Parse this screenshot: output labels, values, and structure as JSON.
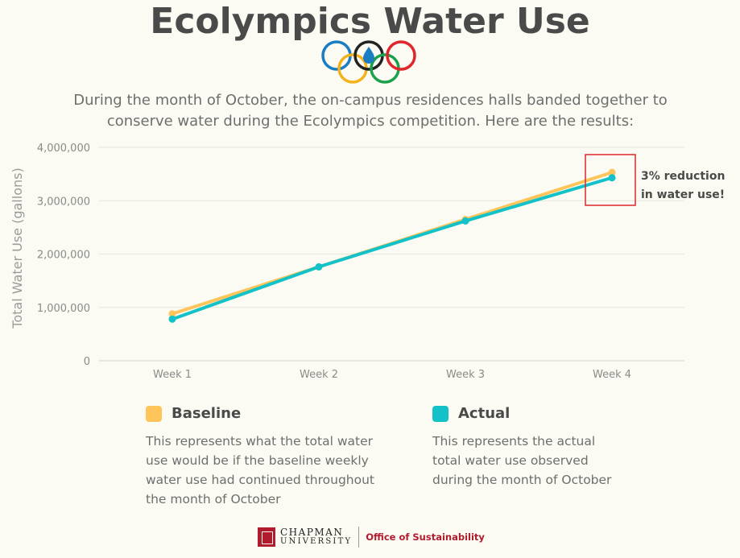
{
  "header": {
    "title": "Ecolympics Water Use",
    "intro_line1": "During the month of October, the on-campus residences halls banded together to",
    "intro_line2": "conserve water during the Ecolympics competition. Here are the results:"
  },
  "colors": {
    "baseline": "#ffc55a",
    "actual": "#13c2c8",
    "highlight": "#e0262b",
    "ring_blue": "#1a7dc2",
    "ring_yellow": "#f3b21b",
    "ring_black": "#222222",
    "ring_green": "#1aa14a",
    "ring_red": "#e0262b"
  },
  "chart_data": {
    "type": "line",
    "categories": [
      "Week 1",
      "Week 2",
      "Week 3",
      "Week 4"
    ],
    "series": [
      {
        "name": "Baseline",
        "values": [
          880000,
          1760000,
          2650000,
          3530000
        ]
      },
      {
        "name": "Actual",
        "values": [
          780000,
          1760000,
          2620000,
          3430000
        ]
      }
    ],
    "ylabel": "Total Water Use (gallons)",
    "ylim": [
      0,
      4000000
    ],
    "yticks": [
      "0",
      "1,000,000",
      "2,000,000",
      "3,000,000",
      "4,000,000"
    ],
    "grid": true,
    "annotation": {
      "line1": "3% reduction",
      "line2": "in water use!"
    }
  },
  "legend": {
    "baseline": {
      "label": "Baseline",
      "desc_lines": [
        "This represents what the total water",
        "use would be if the baseline weekly",
        "water use had continued throughout",
        "the month of October"
      ]
    },
    "actual": {
      "label": "Actual",
      "desc_lines": [
        "This represents the actual",
        "total water use observed",
        "during the month of October"
      ]
    }
  },
  "footer": {
    "logo_top": "CHAPMAN",
    "logo_bottom": "UNIVERSITY",
    "office": "Office of Sustainability"
  }
}
